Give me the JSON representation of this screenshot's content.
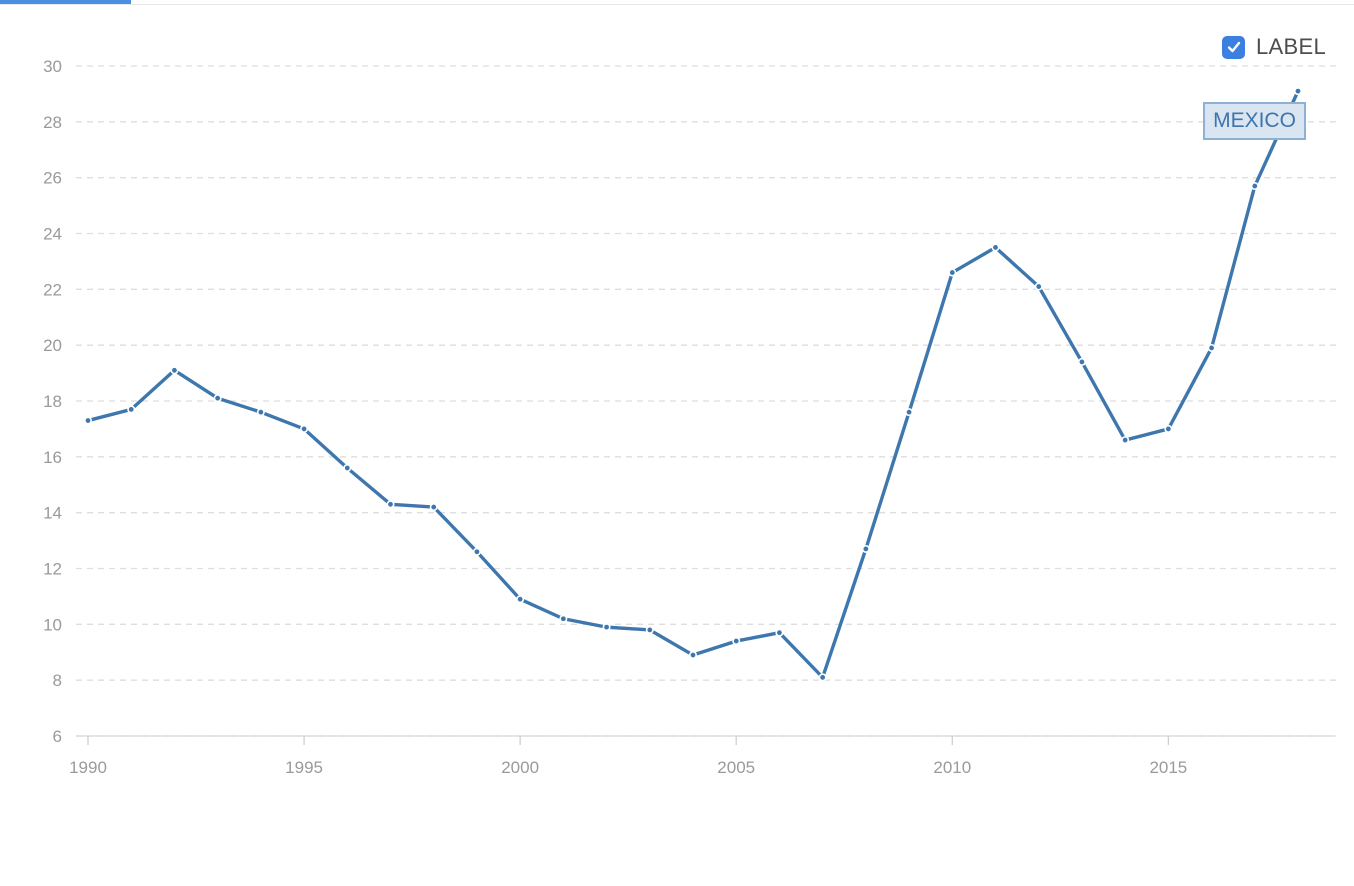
{
  "legend": {
    "label": "LABEL",
    "checked": true,
    "check_icon": "checkmark-icon"
  },
  "series_tag": "MEXICO",
  "colors": {
    "series": "#3d77ad",
    "grid": "#dedede",
    "tick_text": "#9a9a9a",
    "accent": "#4a8fe2"
  },
  "chart_data": {
    "type": "line",
    "title": "",
    "xlabel": "",
    "ylabel": "",
    "x": [
      1990,
      1991,
      1992,
      1993,
      1994,
      1995,
      1996,
      1997,
      1998,
      1999,
      2000,
      2001,
      2002,
      2003,
      2004,
      2005,
      2006,
      2007,
      2008,
      2009,
      2010,
      2011,
      2012,
      2013,
      2014,
      2015,
      2016,
      2017,
      2018
    ],
    "series": [
      {
        "name": "MEXICO",
        "values": [
          17.3,
          17.7,
          19.1,
          18.1,
          17.6,
          17.0,
          15.6,
          14.3,
          14.2,
          12.6,
          10.9,
          10.2,
          9.9,
          9.8,
          8.9,
          9.4,
          9.7,
          8.1,
          12.7,
          17.6,
          22.6,
          23.5,
          22.1,
          19.4,
          16.6,
          17.0,
          19.9,
          25.7,
          29.1
        ]
      }
    ],
    "xlim": [
      1990,
      2018
    ],
    "ylim": [
      6,
      30
    ],
    "x_ticks": [
      1990,
      1995,
      2000,
      2005,
      2010,
      2015
    ],
    "y_ticks": [
      6,
      8,
      10,
      12,
      14,
      16,
      18,
      20,
      22,
      24,
      26,
      28,
      30
    ],
    "grid": true,
    "legend_position": "top-right"
  }
}
